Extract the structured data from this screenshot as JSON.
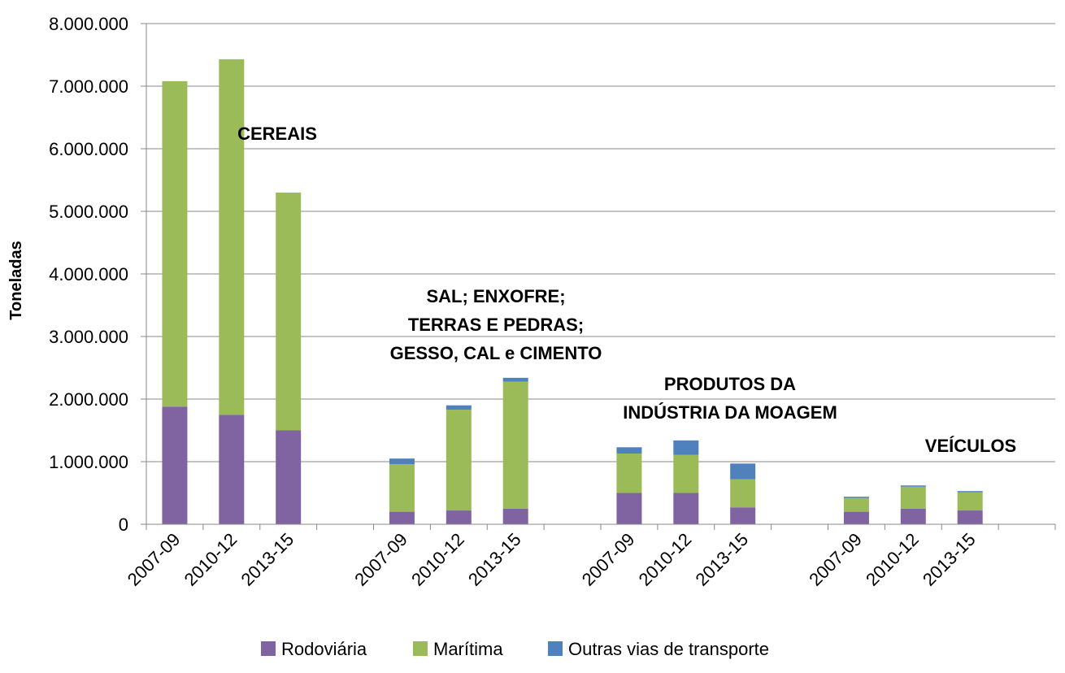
{
  "chart_data": {
    "type": "bar",
    "stacked": true,
    "ylabel": "Toneladas",
    "xlabel": "",
    "ylim": [
      0,
      8000000
    ],
    "y_ticks": [
      "0",
      "1.000.000",
      "2.000.000",
      "3.000.000",
      "4.000.000",
      "5.000.000",
      "6.000.000",
      "7.000.000",
      "8.000.000"
    ],
    "grid": true,
    "legend_position": "bottom",
    "groups": [
      {
        "label_lines": [
          "CEREAIS"
        ],
        "categories": [
          "2007-09",
          "2010-12",
          "2013-15"
        ]
      },
      {
        "label_lines": [
          "SAL; ENXOFRE;",
          "TERRAS E PEDRAS;",
          "GESSO, CAL e CIMENTO"
        ],
        "categories": [
          "2007-09",
          "2010-12",
          "2013-15"
        ]
      },
      {
        "label_lines": [
          "PRODUTOS DA",
          "INDÚSTRIA DA MOAGEM"
        ],
        "categories": [
          "2007-09",
          "2010-12",
          "2013-15"
        ]
      },
      {
        "label_lines": [
          "VEÍCULOS"
        ],
        "categories": [
          "2007-09",
          "2010-12",
          "2013-15"
        ]
      }
    ],
    "series": [
      {
        "name": "Rodoviária",
        "color": "#8064A2",
        "values": [
          1880000,
          1750000,
          1500000,
          200000,
          220000,
          250000,
          500000,
          500000,
          270000,
          200000,
          250000,
          220000
        ]
      },
      {
        "name": "Marítima",
        "color": "#9BBB59",
        "values": [
          5200000,
          5680000,
          3800000,
          760000,
          1610000,
          2030000,
          630000,
          610000,
          450000,
          220000,
          350000,
          290000
        ]
      },
      {
        "name": "Outras vias de transporte",
        "color": "#4F81BD",
        "values": [
          0,
          0,
          0,
          90000,
          70000,
          60000,
          100000,
          230000,
          250000,
          20000,
          20000,
          20000
        ]
      }
    ]
  }
}
